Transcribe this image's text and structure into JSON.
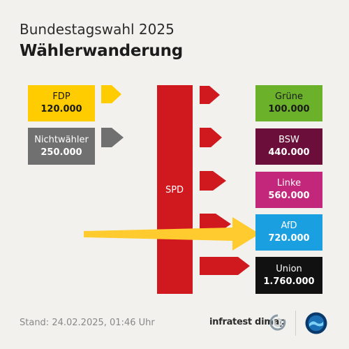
{
  "header": {
    "subtitle": "Bundestagswahl 2025",
    "title": "Wählerwanderung"
  },
  "center": {
    "label": "SPD",
    "color": "#d0181f"
  },
  "sources": [
    {
      "name": "FDP",
      "value": "120.000",
      "color": "#ffcc00",
      "text_color": "#1a1a1a",
      "arrow_color": "#ffcc00"
    },
    {
      "name": "Nichtwähler",
      "value": "250.000",
      "color": "#707070",
      "text_color": "#ffffff",
      "arrow_color": "#707070"
    }
  ],
  "targets": [
    {
      "name": "Grüne",
      "value": "100.000",
      "color": "#6cb12a",
      "text_color": "#1a1a1a"
    },
    {
      "name": "BSW",
      "value": "440.000",
      "color": "#6b0f3a",
      "text_color": "#ffffff"
    },
    {
      "name": "Linke",
      "value": "560.000",
      "color": "#c2277b",
      "text_color": "#ffffff"
    },
    {
      "name": "AfD",
      "value": "720.000",
      "color": "#1aa0e0",
      "text_color": "#ffffff"
    },
    {
      "name": "Union",
      "value": "1.760.000",
      "color": "#111111",
      "text_color": "#ffffff"
    }
  ],
  "highlight_arrow_color": "#ffcb2f",
  "outflow_arrow_color": "#d0181f",
  "footer": {
    "stand": "Stand:  24.02.2025, 01:46 Uhr",
    "pollster": "infratest dimap"
  }
}
